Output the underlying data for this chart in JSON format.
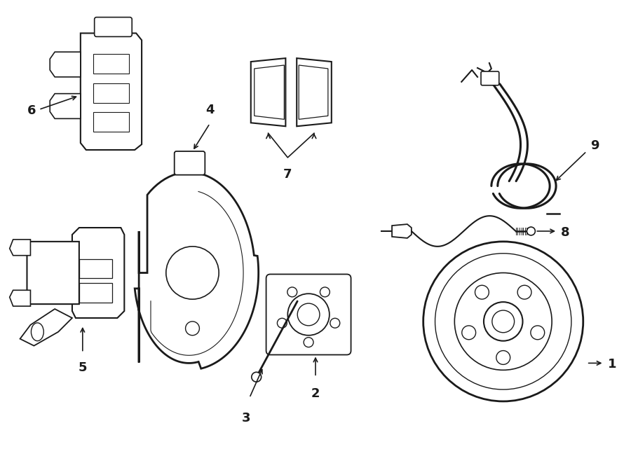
{
  "bg_color": "#ffffff",
  "line_color": "#1a1a1a",
  "lw": 1.3,
  "fig_w": 9.0,
  "fig_h": 6.61
}
